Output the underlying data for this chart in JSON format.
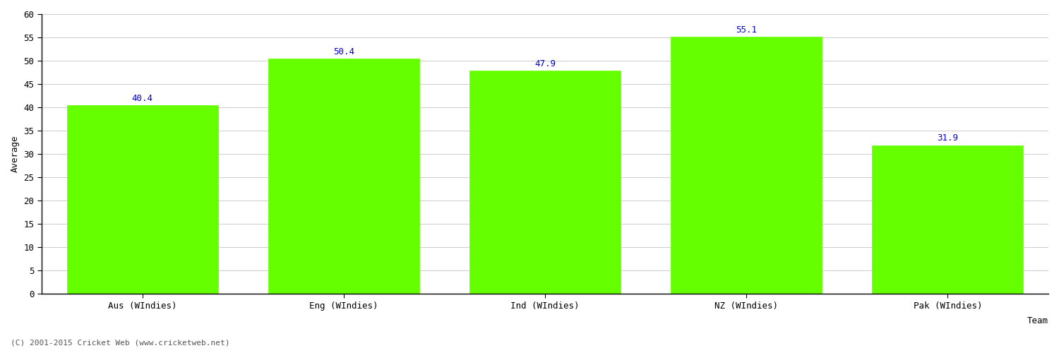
{
  "categories": [
    "Aus (WIndies)",
    "Eng (WIndies)",
    "Ind (WIndies)",
    "NZ (WIndies)",
    "Pak (WIndies)"
  ],
  "values": [
    40.4,
    50.4,
    47.9,
    55.1,
    31.9
  ],
  "bar_color": "#66ff00",
  "bar_edge_color": "#66ff00",
  "value_label_color": "#0000cc",
  "xlabel": "Team",
  "ylabel": "Average",
  "ylim": [
    0,
    60
  ],
  "yticks": [
    0,
    5,
    10,
    15,
    20,
    25,
    30,
    35,
    40,
    45,
    50,
    55,
    60
  ],
  "background_color": "#ffffff",
  "grid_color": "#cccccc",
  "footer_text": "(C) 2001-2015 Cricket Web (www.cricketweb.net)",
  "footer_color": "#555555",
  "value_fontsize": 9,
  "axis_label_fontsize": 9,
  "tick_fontsize": 9,
  "footer_fontsize": 8,
  "bar_width": 0.75
}
